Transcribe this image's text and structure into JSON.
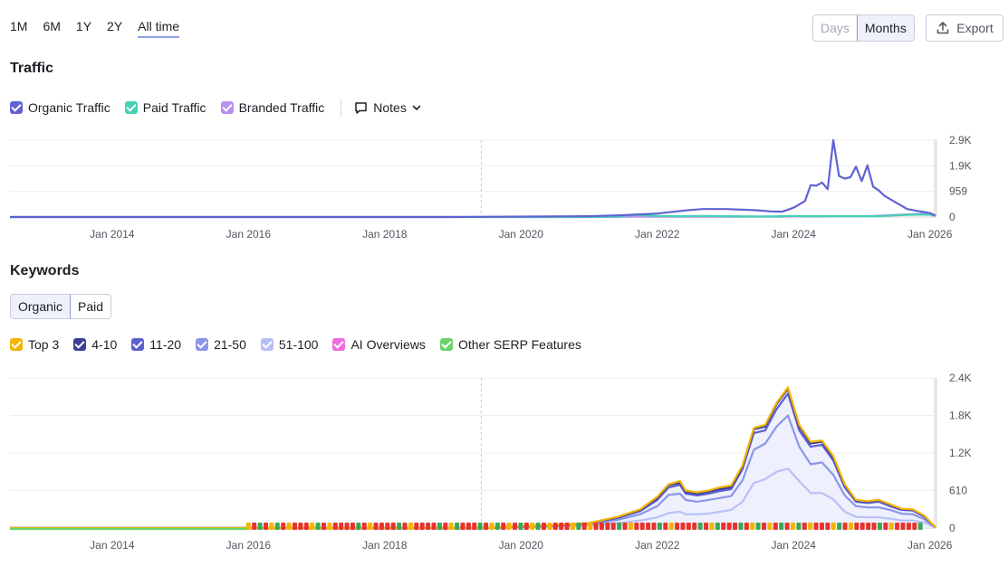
{
  "period_tabs": [
    "1M",
    "6M",
    "1Y",
    "2Y",
    "All time"
  ],
  "active_period": "All time",
  "view_toggle": {
    "days": "Days",
    "months": "Months"
  },
  "export_label": "Export",
  "traffic": {
    "title": "Traffic",
    "legend": [
      {
        "label": "Organic Traffic",
        "color": "#6063d1"
      },
      {
        "label": "Paid Traffic",
        "color": "#42d3b3"
      },
      {
        "label": "Branded Traffic",
        "color": "#b890f0"
      }
    ],
    "notes_label": "Notes"
  },
  "keywords": {
    "title": "Keywords",
    "toggle": {
      "organic": "Organic",
      "paid": "Paid"
    },
    "legend": [
      {
        "label": "Top 3",
        "color": "#f5b400"
      },
      {
        "label": "4-10",
        "color": "#3e3f9a"
      },
      {
        "label": "11-20",
        "color": "#5c61d0"
      },
      {
        "label": "21-50",
        "color": "#8b96e8"
      },
      {
        "label": "51-100",
        "color": "#b7c0f5"
      },
      {
        "label": "AI Overviews",
        "color": "#ef6de0"
      },
      {
        "label": "Other SERP Features",
        "color": "#6ad36b"
      }
    ]
  },
  "chart_data": [
    {
      "type": "line",
      "title": "Traffic",
      "xlabel": "",
      "ylabel": "",
      "x_ticks": [
        "Jan 2014",
        "Jan 2016",
        "Jan 2018",
        "Jan 2020",
        "Jan 2022",
        "Jan 2024",
        "Jan 2026"
      ],
      "y_ticks": [
        "0",
        "959",
        "1.9K",
        "2.9K"
      ],
      "ylim": [
        0,
        2900
      ],
      "x": [
        "2012-07",
        "2019-01",
        "2020-06",
        "2021-01",
        "2021-06",
        "2021-09",
        "2022-01",
        "2022-06",
        "2022-09",
        "2023-01",
        "2023-06",
        "2023-09",
        "2023-11",
        "2024-01",
        "2024-03",
        "2024-04",
        "2024-05",
        "2024-06",
        "2024-07",
        "2024-08",
        "2024-09",
        "2024-10",
        "2024-11",
        "2024-12",
        "2025-01",
        "2025-02",
        "2025-03",
        "2025-04",
        "2025-05",
        "2025-07",
        "2025-09",
        "2025-11",
        "2026-01",
        "2026-02"
      ],
      "series": [
        {
          "name": "Organic Traffic",
          "color": "#6063d1",
          "values": [
            0,
            0,
            20,
            30,
            60,
            90,
            130,
            250,
            300,
            300,
            260,
            210,
            200,
            350,
            600,
            1200,
            1180,
            1300,
            1050,
            2900,
            1550,
            1450,
            1500,
            1900,
            1350,
            1950,
            1150,
            1000,
            800,
            550,
            300,
            220,
            150,
            50
          ]
        },
        {
          "name": "Paid Traffic",
          "color": "#42d3b3",
          "values": [
            0,
            0,
            0,
            0,
            20,
            80,
            40,
            30,
            40,
            30,
            20,
            20,
            30,
            40,
            30,
            30,
            30,
            30,
            30,
            30,
            30,
            30,
            30,
            30,
            30,
            30,
            30,
            30,
            40,
            60,
            80,
            90,
            90,
            40
          ]
        },
        {
          "name": "Branded Traffic",
          "color": "#b890f0",
          "values": [
            0,
            0,
            0,
            0,
            0,
            10,
            10,
            10,
            10,
            10,
            10,
            10,
            10,
            20,
            20,
            20,
            20,
            20,
            20,
            30,
            30,
            30,
            30,
            30,
            30,
            40,
            40,
            50,
            60,
            80,
            100,
            120,
            120,
            60
          ]
        }
      ]
    },
    {
      "type": "area",
      "title": "Keywords",
      "xlabel": "",
      "ylabel": "",
      "x_ticks": [
        "Jan 2014",
        "Jan 2016",
        "Jan 2018",
        "Jan 2020",
        "Jan 2022",
        "Jan 2024",
        "Jan 2026"
      ],
      "y_ticks": [
        "0",
        "610",
        "1.2K",
        "1.8K",
        "2.4K"
      ],
      "ylim": [
        0,
        2400
      ],
      "x": [
        "2012-07",
        "2019-06",
        "2020-06",
        "2021-01",
        "2021-06",
        "2021-10",
        "2022-01",
        "2022-03",
        "2022-05",
        "2022-06",
        "2022-08",
        "2022-10",
        "2022-12",
        "2023-02",
        "2023-04",
        "2023-06",
        "2023-08",
        "2023-10",
        "2023-12",
        "2024-02",
        "2024-04",
        "2024-06",
        "2024-08",
        "2024-10",
        "2024-12",
        "2025-02",
        "2025-04",
        "2025-06",
        "2025-08",
        "2025-10",
        "2025-12",
        "2026-02"
      ],
      "series": [
        {
          "name": "Top 3",
          "color": "#f5b400",
          "values": [
            0,
            0,
            40,
            80,
            180,
            300,
            500,
            700,
            750,
            600,
            570,
            600,
            650,
            680,
            1000,
            1600,
            1650,
            2000,
            2250,
            1650,
            1380,
            1400,
            1150,
            700,
            450,
            430,
            450,
            380,
            310,
            300,
            200,
            10
          ]
        },
        {
          "name": "4-10",
          "color": "#3e3f9a",
          "values": [
            0,
            0,
            40,
            80,
            170,
            290,
            480,
            690,
            720,
            580,
            550,
            580,
            620,
            650,
            980,
            1580,
            1620,
            1980,
            2230,
            1620,
            1350,
            1380,
            1120,
            680,
            440,
            420,
            440,
            370,
            300,
            290,
            190,
            10
          ]
        },
        {
          "name": "11-20",
          "color": "#5c61d0",
          "values": [
            0,
            0,
            35,
            75,
            160,
            270,
            450,
            650,
            690,
            550,
            520,
            550,
            590,
            620,
            940,
            1520,
            1560,
            1900,
            2150,
            1560,
            1300,
            1330,
            1080,
            650,
            420,
            400,
            420,
            350,
            290,
            280,
            180,
            10
          ]
        },
        {
          "name": "21-50",
          "color": "#8b96e8",
          "values": [
            0,
            0,
            30,
            60,
            130,
            220,
            350,
            530,
            550,
            450,
            420,
            450,
            480,
            510,
            760,
            1250,
            1350,
            1620,
            1800,
            1300,
            1020,
            1050,
            850,
            520,
            350,
            330,
            330,
            290,
            230,
            220,
            140,
            8
          ]
        },
        {
          "name": "51-100",
          "color": "#b7c0f5",
          "values": [
            0,
            0,
            20,
            40,
            80,
            120,
            170,
            240,
            260,
            220,
            220,
            230,
            260,
            290,
            420,
            720,
            780,
            900,
            950,
            750,
            560,
            560,
            460,
            260,
            180,
            170,
            170,
            150,
            120,
            120,
            90,
            5
          ]
        }
      ]
    }
  ]
}
